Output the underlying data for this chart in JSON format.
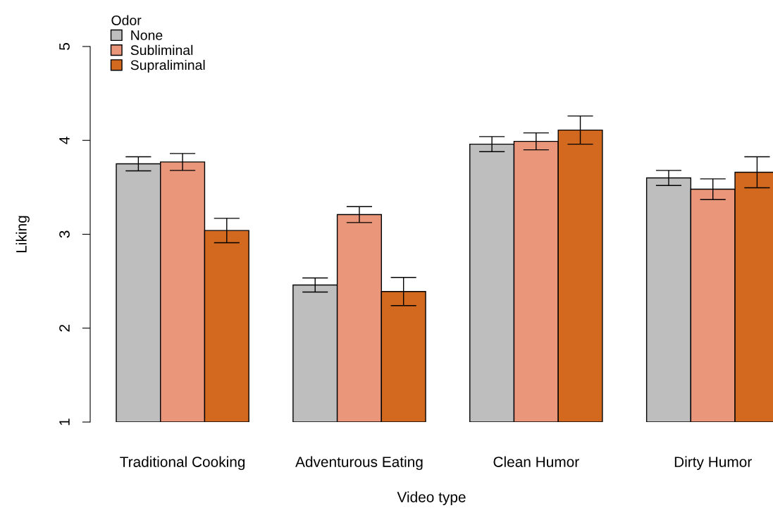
{
  "chart_data": {
    "type": "bar",
    "xlabel": "Video type",
    "ylabel": "Liking",
    "legend_title": "Odor",
    "legend": "top left",
    "grid": false,
    "categories": [
      "Traditional Cooking",
      "Adventurous Eating",
      "Clean Humor",
      "Dirty Humor"
    ],
    "series": [
      {
        "name": "None",
        "color": "#bebebe",
        "values": [
          3.75,
          2.46,
          3.96,
          3.6
        ],
        "errors": [
          0.075,
          0.075,
          0.08,
          0.08
        ]
      },
      {
        "name": "Subliminal",
        "color": "#e9967a",
        "values": [
          3.77,
          3.21,
          3.99,
          3.48
        ],
        "errors": [
          0.09,
          0.085,
          0.09,
          0.11
        ]
      },
      {
        "name": "Supraliminal",
        "color": "#d2691e",
        "values": [
          3.04,
          2.39,
          4.11,
          3.66
        ],
        "errors": [
          0.13,
          0.15,
          0.15,
          0.165
        ]
      }
    ],
    "ylim": [
      1,
      5
    ],
    "yticks": [
      1,
      2,
      3,
      4,
      5
    ]
  }
}
